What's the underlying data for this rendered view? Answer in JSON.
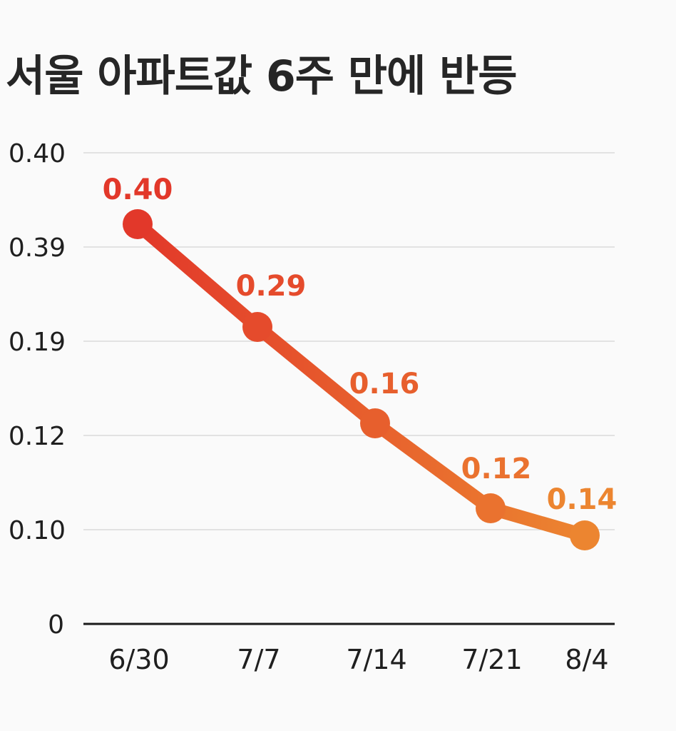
{
  "title": "서울 아파트값 6주 만에 반등",
  "chart_data": {
    "type": "line",
    "title": "서울 아파트값 6주 만에 반등",
    "xlabel": "",
    "ylabel": "",
    "categories": [
      "6/30",
      "7/7",
      "7/14",
      "7/21",
      "8/4"
    ],
    "y_tick_labels": [
      "0",
      "0.10",
      "0.12",
      "0.19",
      "0.39",
      "0.40"
    ],
    "series": [
      {
        "values": [
          0.4,
          0.29,
          0.16,
          0.12,
          0.14
        ]
      }
    ],
    "data_labels": [
      "0.40",
      "0.29",
      "0.16",
      "0.12",
      "0.14"
    ],
    "grid": true,
    "legend": "none",
    "colors": {
      "start": "#e2382a",
      "end": "#ec8530",
      "grid": "#d9d9d9",
      "axis": "#1a1a1a"
    }
  }
}
